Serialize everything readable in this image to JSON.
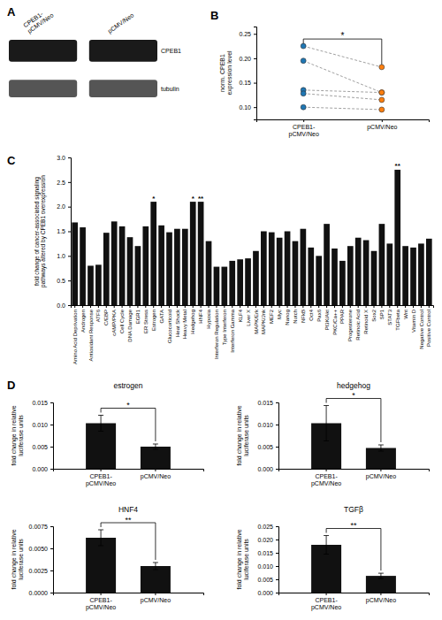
{
  "chart_data": [
    {
      "type": "blot",
      "panel": "A",
      "categories": [
        "CPEB1-\npCMV/Neo",
        "pCMV/Neo"
      ],
      "annotations": [
        "CPEB1",
        "tubulin"
      ]
    },
    {
      "type": "dotplot",
      "panel": "B",
      "categories": [
        "CPEB1-\npCMV/Neo",
        "pCMV/Neo"
      ],
      "series": [
        {
          "values": [
            0.225,
            0.182
          ]
        },
        {
          "values": [
            0.195,
            0.13
          ]
        },
        {
          "values": [
            0.135,
            0.13
          ]
        },
        {
          "values": [
            0.128,
            0.115
          ]
        },
        {
          "values": [
            0.1,
            0.095
          ]
        }
      ],
      "line_style": "dashed",
      "marker": "circle",
      "ylabel": "norm. CPEB1\nexpression level",
      "ylim": [
        0.075,
        0.265
      ],
      "yticks": [
        {
          "value": 0.1,
          "label": "0.10"
        },
        0.15,
        {
          "value": 0.2,
          "label": "0.20"
        },
        0.25
      ],
      "annotations": [
        "*"
      ]
    },
    {
      "type": "bar",
      "panel": "C",
      "categories": [
        "Amino Acid Deprivation",
        "Androgen",
        "Antioxidant Response",
        "ATF6",
        "C/EBP",
        "cAMP/PKA",
        "Cell Cycle",
        "DNA Damage",
        "EGR1",
        "ER Stress",
        "Estrogen",
        "GATA",
        "Glucocorticoid",
        "Heat Shock",
        "Heavy Metal",
        "Hedgehog",
        "HNF4",
        "Hypoxia",
        "Interferon Regulation",
        "Type Interferon",
        "Interferon Gamma",
        "KLF4",
        "Liver X",
        "MAPK/Erk",
        "MAPK/Jnk",
        "MEF2",
        "Myc",
        "Nanog",
        "Notch",
        "NFkB",
        "Oct4",
        "Pax6",
        "PI3K/Akt",
        "PKC/Ca++",
        "PPAR",
        "Progesterone",
        "Retinoic Acid",
        "Retinoid X",
        "Sox2",
        "SP1",
        "STAT3",
        "TGFbeta",
        "Wnt",
        "Vitamin D",
        "Negative Control",
        "Positive Control"
      ],
      "values": [
        1.68,
        1.58,
        0.8,
        0.82,
        1.47,
        1.7,
        1.6,
        1.38,
        1.2,
        1.6,
        2.1,
        1.62,
        1.48,
        1.55,
        1.55,
        2.1,
        2.1,
        1.3,
        0.78,
        0.78,
        0.9,
        0.93,
        0.95,
        1.1,
        1.5,
        1.48,
        1.37,
        1.5,
        1.3,
        1.55,
        1.17,
        1.0,
        1.65,
        1.15,
        0.9,
        1.2,
        1.37,
        1.32,
        1.1,
        1.65,
        1.25,
        2.75,
        1.2,
        1.17,
        1.25,
        1.35
      ],
      "color": "#111111",
      "ylabel": "fold change of cancer-associated signaling\npathways altered by CPEB1 overexpression",
      "ylim": [
        0,
        3.0
      ],
      "yticks": [
        {
          "value": 0,
          "label": "0.0"
        },
        0.5,
        {
          "value": 1,
          "label": "1.0"
        },
        1.5,
        {
          "value": 2,
          "label": "2.0"
        },
        2.5,
        {
          "value": 3,
          "label": "3.0"
        }
      ],
      "annotations": [
        {
          "text": "*",
          "category": "Estrogen"
        },
        {
          "text": "*",
          "category": "Hedgehog"
        },
        {
          "text": "**",
          "category": "HNF4"
        },
        {
          "text": "**",
          "category": "TGFbeta"
        }
      ]
    },
    {
      "type": "bar",
      "panel": "D",
      "title": "estrogen",
      "categories": [
        "CPEB1-\npCMV/Neo",
        "pCMV/Neo"
      ],
      "values": [
        0.0103,
        0.005
      ],
      "errors": [
        0.0018,
        0.0006
      ],
      "color": "#111111",
      "ylabel": "fold change in relative\nluciferase units",
      "ylim": [
        0,
        0.015
      ],
      "yticks": [
        {
          "value": 0,
          "label": "0.000"
        },
        0.005,
        {
          "value": 0.01,
          "label": "0.010"
        },
        0.015
      ],
      "annotations": [
        "*"
      ]
    },
    {
      "type": "bar",
      "title": "hedgehog",
      "categories": [
        "CPEB1-\npCMV/Neo",
        "pCMV/Neo"
      ],
      "values": [
        0.0103,
        0.0047
      ],
      "errors": [
        0.004,
        0.0007
      ],
      "color": "#111111",
      "ylabel": "fold change in relative\nluciferase units",
      "ylim": [
        0,
        0.015
      ],
      "yticks": [
        {
          "value": 0,
          "label": "0.000"
        },
        0.005,
        {
          "value": 0.01,
          "label": "0.010"
        },
        0.015
      ],
      "annotations": [
        "*"
      ]
    },
    {
      "type": "bar",
      "title": "HNF4",
      "categories": [
        "CPEB1-\npCMV/Neo",
        "pCMV/Neo"
      ],
      "values": [
        0.0062,
        0.003
      ],
      "errors": [
        0.0009,
        0.0004
      ],
      "color": "#111111",
      "ylabel": "fold change in relative\nluciferase units",
      "ylim": [
        0,
        0.0075
      ],
      "yticks": [
        {
          "value": 0,
          "label": "0.0000"
        },
        0.0025,
        {
          "value": 0.005,
          "label": "0.0050"
        },
        0.0075
      ],
      "annotations": [
        "**"
      ]
    },
    {
      "type": "bar",
      "title": "TGFβ",
      "categories": [
        "CPEB1-\npCMV/Neo",
        "pCMV/Neo"
      ],
      "values": [
        0.018,
        0.0063
      ],
      "errors": [
        0.0035,
        0.001
      ],
      "color": "#111111",
      "ylabel": "fold change in relative\nluciferase units",
      "ylim": [
        0,
        0.025
      ],
      "yticks": [
        {
          "value": 0,
          "label": "0.000"
        },
        0.005,
        {
          "value": 0.01,
          "label": "0.010"
        },
        0.015,
        {
          "value": 0.02,
          "label": "0.020"
        },
        0.025
      ],
      "annotations": [
        "**"
      ]
    }
  ]
}
